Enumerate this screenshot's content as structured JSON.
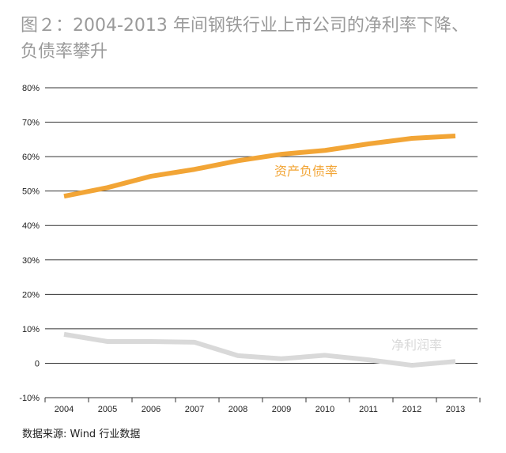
{
  "title_line1": "图２：2004-2013 年间钢铁行业上市公司的净利率下降、",
  "title_line2": "负债率攀升",
  "source": "数据来源: Wind 行业数据",
  "colors": {
    "debt_ratio": "#f2a536",
    "net_margin": "#d9d9d9",
    "grid": "#333333",
    "axis_text": "#222222",
    "title": "#9a9a9a"
  },
  "chart_data": {
    "type": "line",
    "title": "",
    "xlabel": "",
    "ylabel": "",
    "x": [
      "2004",
      "2005",
      "2006",
      "2007",
      "2008",
      "2009",
      "2010",
      "2011",
      "2012",
      "2013"
    ],
    "y_ticks": [
      "80%",
      "70%",
      "60%",
      "50%",
      "40%",
      "30%",
      "20%",
      "10%",
      "0",
      "-10%"
    ],
    "ylim": [
      -10,
      80
    ],
    "grid": true,
    "series": [
      {
        "name": "资产负债率",
        "values": [
          48.5,
          51.0,
          54.3,
          56.3,
          58.8,
          60.7,
          61.8,
          63.7,
          65.3,
          66.0
        ]
      },
      {
        "name": "净利润率",
        "values": [
          8.4,
          6.3,
          6.3,
          6.1,
          2.2,
          1.3,
          2.3,
          1.0,
          -0.6,
          0.5
        ]
      }
    ]
  }
}
